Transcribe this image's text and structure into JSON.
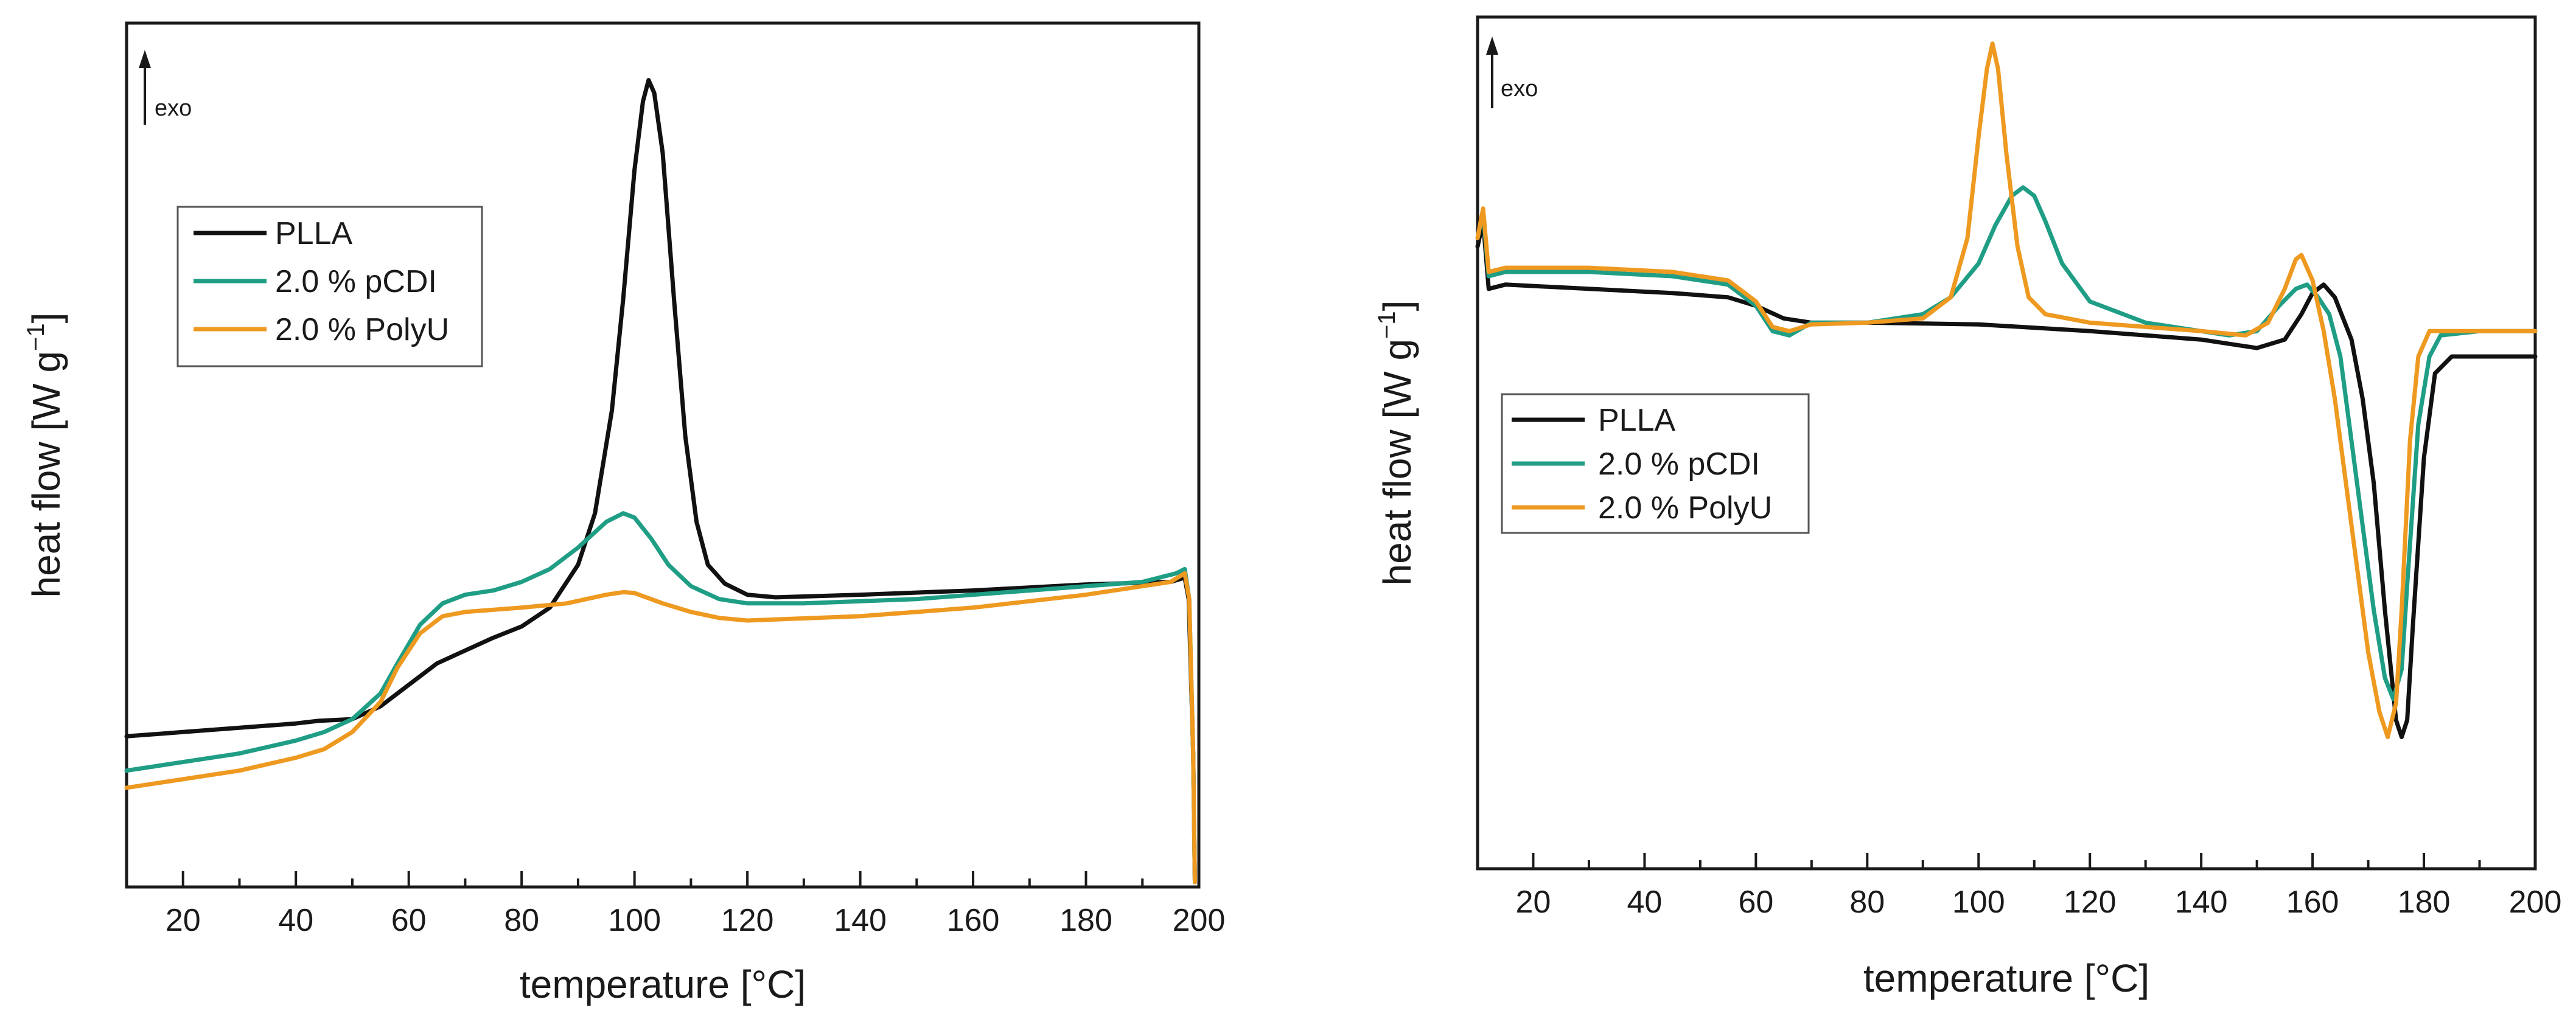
{
  "chart_data": [
    {
      "type": "line",
      "title": "",
      "xlabel": "temperature [°C]",
      "ylabel": "heat flow [W g",
      "ylabel_sup": "−1",
      "ylabel_end": "]",
      "exo_label": "exo",
      "xlim": [
        10,
        200
      ],
      "ylim": [
        0,
        100
      ],
      "x_ticks": [
        20,
        40,
        60,
        80,
        100,
        120,
        140,
        160,
        180,
        200
      ],
      "y_ticks_shown": false,
      "legend_position": "top-left",
      "series": [
        {
          "name": "PLLA",
          "color": "#111111",
          "points": [
            [
              10,
              17
            ],
            [
              20,
              17.5
            ],
            [
              30,
              18
            ],
            [
              40,
              18.5
            ],
            [
              44,
              18.8
            ],
            [
              50,
              19
            ],
            [
              55,
              20.5
            ],
            [
              60,
              23
            ],
            [
              65,
              25.5
            ],
            [
              70,
              27
            ],
            [
              75,
              28.5
            ],
            [
              80,
              29.8
            ],
            [
              85,
              32
            ],
            [
              90,
              37
            ],
            [
              93,
              43
            ],
            [
              96,
              55
            ],
            [
              98,
              68
            ],
            [
              100,
              83
            ],
            [
              101.5,
              91
            ],
            [
              102.5,
              93.5
            ],
            [
              103.5,
              92
            ],
            [
              105,
              85
            ],
            [
              107,
              68
            ],
            [
              109,
              52
            ],
            [
              111,
              42
            ],
            [
              113,
              37
            ],
            [
              116,
              34.8
            ],
            [
              120,
              33.5
            ],
            [
              125,
              33.2
            ],
            [
              140,
              33.5
            ],
            [
              160,
              34
            ],
            [
              180,
              34.7
            ],
            [
              195,
              35
            ],
            [
              197.5,
              35.5
            ],
            [
              198.2,
              33
            ],
            [
              199,
              15
            ],
            [
              199.3,
              0
            ]
          ]
        },
        {
          "name": "2.0 % pCDI",
          "color": "#1f9e85",
          "points": [
            [
              10,
              13
            ],
            [
              20,
              14
            ],
            [
              30,
              15
            ],
            [
              40,
              16.5
            ],
            [
              45,
              17.5
            ],
            [
              50,
              19
            ],
            [
              55,
              22
            ],
            [
              58,
              25.5
            ],
            [
              62,
              30
            ],
            [
              66,
              32.5
            ],
            [
              70,
              33.5
            ],
            [
              75,
              34
            ],
            [
              80,
              35
            ],
            [
              85,
              36.5
            ],
            [
              90,
              39
            ],
            [
              95,
              42
            ],
            [
              98,
              43
            ],
            [
              100,
              42.5
            ],
            [
              103,
              40
            ],
            [
              106,
              37
            ],
            [
              110,
              34.5
            ],
            [
              115,
              33
            ],
            [
              120,
              32.5
            ],
            [
              130,
              32.5
            ],
            [
              150,
              33
            ],
            [
              170,
              34
            ],
            [
              190,
              35
            ],
            [
              196,
              36
            ],
            [
              197.5,
              36.5
            ],
            [
              198.3,
              33
            ],
            [
              199,
              15
            ],
            [
              199.3,
              0
            ]
          ]
        },
        {
          "name": "2.0 % PolyU",
          "color": "#ee9920",
          "points": [
            [
              10,
              11
            ],
            [
              20,
              12
            ],
            [
              30,
              13
            ],
            [
              40,
              14.5
            ],
            [
              45,
              15.5
            ],
            [
              50,
              17.5
            ],
            [
              55,
              21
            ],
            [
              58,
              25
            ],
            [
              62,
              29
            ],
            [
              66,
              31
            ],
            [
              70,
              31.5
            ],
            [
              80,
              32
            ],
            [
              88,
              32.5
            ],
            [
              95,
              33.5
            ],
            [
              98,
              33.8
            ],
            [
              100,
              33.7
            ],
            [
              105,
              32.5
            ],
            [
              110,
              31.5
            ],
            [
              115,
              30.8
            ],
            [
              120,
              30.5
            ],
            [
              140,
              31
            ],
            [
              160,
              32
            ],
            [
              180,
              33.5
            ],
            [
              195,
              35
            ],
            [
              197.5,
              36
            ],
            [
              198.3,
              33
            ],
            [
              199,
              15
            ],
            [
              199.3,
              0
            ]
          ]
        }
      ],
      "legend": [
        "PLLA",
        "2.0 % pCDI",
        "2.0 % PolyU"
      ]
    },
    {
      "type": "line",
      "title": "",
      "xlabel": "temperature [°C]",
      "ylabel": "heat flow [W g",
      "ylabel_sup": "−1",
      "ylabel_end": "]",
      "exo_label": "exo",
      "xlim": [
        10,
        200
      ],
      "ylim": [
        0,
        100
      ],
      "x_ticks": [
        20,
        40,
        60,
        80,
        100,
        120,
        140,
        160,
        180,
        200
      ],
      "y_ticks_shown": false,
      "legend_position": "middle-left",
      "series": [
        {
          "name": "PLLA",
          "color": "#111111",
          "points": [
            [
              10,
              73
            ],
            [
              11,
              76
            ],
            [
              12,
              68
            ],
            [
              15,
              68.5
            ],
            [
              30,
              68
            ],
            [
              45,
              67.5
            ],
            [
              55,
              67
            ],
            [
              60,
              66
            ],
            [
              65,
              64.5
            ],
            [
              70,
              64
            ],
            [
              80,
              64
            ],
            [
              100,
              63.8
            ],
            [
              120,
              63
            ],
            [
              140,
              62
            ],
            [
              150,
              61
            ],
            [
              155,
              62
            ],
            [
              158,
              65
            ],
            [
              160,
              67.5
            ],
            [
              162,
              68.5
            ],
            [
              164,
              67
            ],
            [
              167,
              62
            ],
            [
              169,
              55
            ],
            [
              171,
              45
            ],
            [
              173,
              30
            ],
            [
              175,
              17
            ],
            [
              176,
              15
            ],
            [
              177,
              17
            ],
            [
              178,
              28
            ],
            [
              180,
              48
            ],
            [
              182,
              58
            ],
            [
              185,
              60
            ],
            [
              190,
              60
            ],
            [
              200,
              60
            ]
          ]
        },
        {
          "name": "2.0 % pCDI",
          "color": "#1f9e85",
          "points": [
            [
              10,
              74
            ],
            [
              11,
              77
            ],
            [
              12,
              69.5
            ],
            [
              15,
              70
            ],
            [
              30,
              70
            ],
            [
              45,
              69.5
            ],
            [
              55,
              68.5
            ],
            [
              60,
              66
            ],
            [
              63,
              63
            ],
            [
              66,
              62.5
            ],
            [
              70,
              64
            ],
            [
              80,
              64
            ],
            [
              90,
              65
            ],
            [
              95,
              67
            ],
            [
              100,
              71
            ],
            [
              103,
              75.5
            ],
            [
              106,
              79
            ],
            [
              108,
              80
            ],
            [
              110,
              79
            ],
            [
              112,
              76
            ],
            [
              115,
              71
            ],
            [
              120,
              66.5
            ],
            [
              130,
              64
            ],
            [
              145,
              62.5
            ],
            [
              150,
              63
            ],
            [
              154,
              66
            ],
            [
              157,
              68
            ],
            [
              159,
              68.5
            ],
            [
              161,
              67
            ],
            [
              163,
              65
            ],
            [
              165,
              60
            ],
            [
              167,
              50
            ],
            [
              169,
              40
            ],
            [
              171,
              30
            ],
            [
              173,
              22
            ],
            [
              174.5,
              19.5
            ],
            [
              176,
              23
            ],
            [
              177,
              33
            ],
            [
              179,
              52
            ],
            [
              181,
              60
            ],
            [
              183,
              62.5
            ],
            [
              190,
              63
            ],
            [
              200,
              63
            ]
          ]
        },
        {
          "name": "2.0 % PolyU",
          "color": "#ee9920",
          "points": [
            [
              10,
              74
            ],
            [
              11,
              77.5
            ],
            [
              12,
              70
            ],
            [
              15,
              70.5
            ],
            [
              30,
              70.5
            ],
            [
              45,
              70
            ],
            [
              55,
              69
            ],
            [
              60,
              66.5
            ],
            [
              63,
              63.5
            ],
            [
              66,
              63
            ],
            [
              70,
              63.8
            ],
            [
              80,
              64
            ],
            [
              90,
              64.5
            ],
            [
              95,
              67
            ],
            [
              98,
              74
            ],
            [
              100,
              86
            ],
            [
              101.5,
              94
            ],
            [
              102.5,
              97
            ],
            [
              103.5,
              94
            ],
            [
              105,
              84
            ],
            [
              107,
              73
            ],
            [
              109,
              67
            ],
            [
              112,
              65
            ],
            [
              120,
              64
            ],
            [
              140,
              63
            ],
            [
              148,
              62.5
            ],
            [
              152,
              64
            ],
            [
              155,
              68
            ],
            [
              157,
              71.5
            ],
            [
              158,
              72
            ],
            [
              160,
              69
            ],
            [
              162,
              63
            ],
            [
              164,
              55
            ],
            [
              166,
              45
            ],
            [
              168,
              35
            ],
            [
              170,
              25
            ],
            [
              172,
              18
            ],
            [
              173.5,
              15
            ],
            [
              175,
              19
            ],
            [
              176,
              30
            ],
            [
              177.5,
              50
            ],
            [
              179,
              60
            ],
            [
              181,
              63
            ],
            [
              190,
              63
            ],
            [
              200,
              63
            ]
          ]
        }
      ],
      "legend": [
        "PLLA",
        "2.0 % pCDI",
        "2.0 % PolyU"
      ]
    }
  ]
}
